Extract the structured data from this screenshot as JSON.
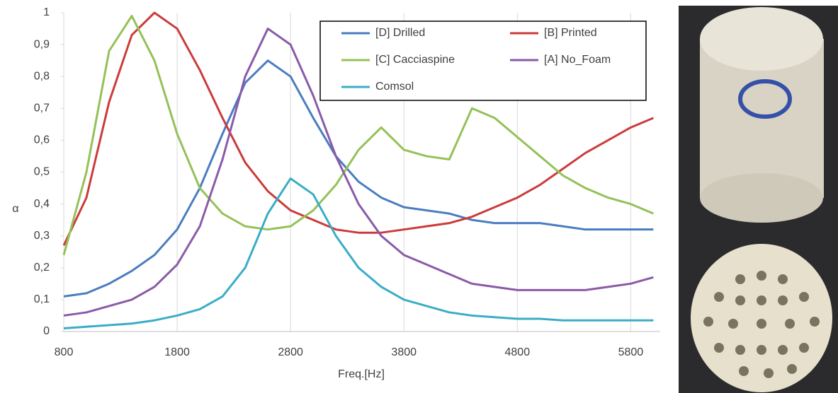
{
  "chart_data": {
    "type": "line",
    "x_label": "Freq.[Hz]",
    "y_label": "α",
    "x": [
      800,
      1000,
      1200,
      1400,
      1600,
      1800,
      2000,
      2200,
      2400,
      2600,
      2800,
      3000,
      3200,
      3400,
      3600,
      3800,
      4000,
      4200,
      4400,
      4600,
      4800,
      5000,
      5200,
      5400,
      5600,
      5800,
      6000
    ],
    "series": [
      {
        "name": "[D] Drilled",
        "color": "#4a7dc0",
        "values": [
          0.11,
          0.12,
          0.15,
          0.19,
          0.24,
          0.32,
          0.45,
          0.62,
          0.78,
          0.85,
          0.8,
          0.67,
          0.55,
          0.47,
          0.42,
          0.39,
          0.38,
          0.37,
          0.35,
          0.34,
          0.34,
          0.34,
          0.33,
          0.32,
          0.32,
          0.32,
          0.32
        ]
      },
      {
        "name": "[B] Printed",
        "color": "#cc3b3b",
        "values": [
          0.27,
          0.42,
          0.72,
          0.93,
          1.0,
          0.95,
          0.82,
          0.67,
          0.53,
          0.44,
          0.38,
          0.35,
          0.32,
          0.31,
          0.31,
          0.32,
          0.33,
          0.34,
          0.36,
          0.39,
          0.42,
          0.46,
          0.51,
          0.56,
          0.6,
          0.64,
          0.67
        ]
      },
      {
        "name": "[C] Cacciaspine",
        "color": "#94c157",
        "values": [
          0.24,
          0.5,
          0.88,
          0.99,
          0.85,
          0.62,
          0.45,
          0.37,
          0.33,
          0.32,
          0.33,
          0.38,
          0.46,
          0.57,
          0.64,
          0.57,
          0.55,
          0.54,
          0.7,
          0.67,
          0.61,
          0.55,
          0.49,
          0.45,
          0.42,
          0.4,
          0.37
        ]
      },
      {
        "name": "[A] No_Foam",
        "color": "#8a5aa8",
        "values": [
          0.05,
          0.06,
          0.08,
          0.1,
          0.14,
          0.21,
          0.33,
          0.54,
          0.8,
          0.95,
          0.9,
          0.74,
          0.55,
          0.4,
          0.3,
          0.24,
          0.21,
          0.18,
          0.15,
          0.14,
          0.13,
          0.13,
          0.13,
          0.13,
          0.14,
          0.15,
          0.17
        ]
      },
      {
        "name": "Comsol",
        "color": "#3aadc6",
        "values": [
          0.01,
          0.015,
          0.02,
          0.025,
          0.035,
          0.05,
          0.07,
          0.11,
          0.2,
          0.37,
          0.48,
          0.43,
          0.3,
          0.2,
          0.14,
          0.1,
          0.08,
          0.06,
          0.05,
          0.045,
          0.04,
          0.04,
          0.035,
          0.035,
          0.035,
          0.035,
          0.035
        ]
      }
    ],
    "xlim": [
      800,
      6060
    ],
    "xticks": [
      800,
      1800,
      2800,
      3800,
      4800,
      5800
    ],
    "ylim": [
      0,
      1
    ],
    "yticks": [
      0,
      {
        "value": 0.1,
        "label": "0,1"
      },
      {
        "value": 0.2,
        "label": "0,2"
      },
      {
        "value": 0.3,
        "label": "0,3"
      },
      {
        "value": 0.4,
        "label": "0,4"
      },
      {
        "value": 0.5,
        "label": "0,5"
      },
      {
        "value": 0.6,
        "label": "0,6"
      },
      {
        "value": 0.7,
        "label": "0,7"
      },
      {
        "value": 0.8,
        "label": "0,8"
      },
      {
        "value": 0.9,
        "label": "0,9"
      },
      1
    ],
    "grid": true,
    "legend": "top-right"
  }
}
